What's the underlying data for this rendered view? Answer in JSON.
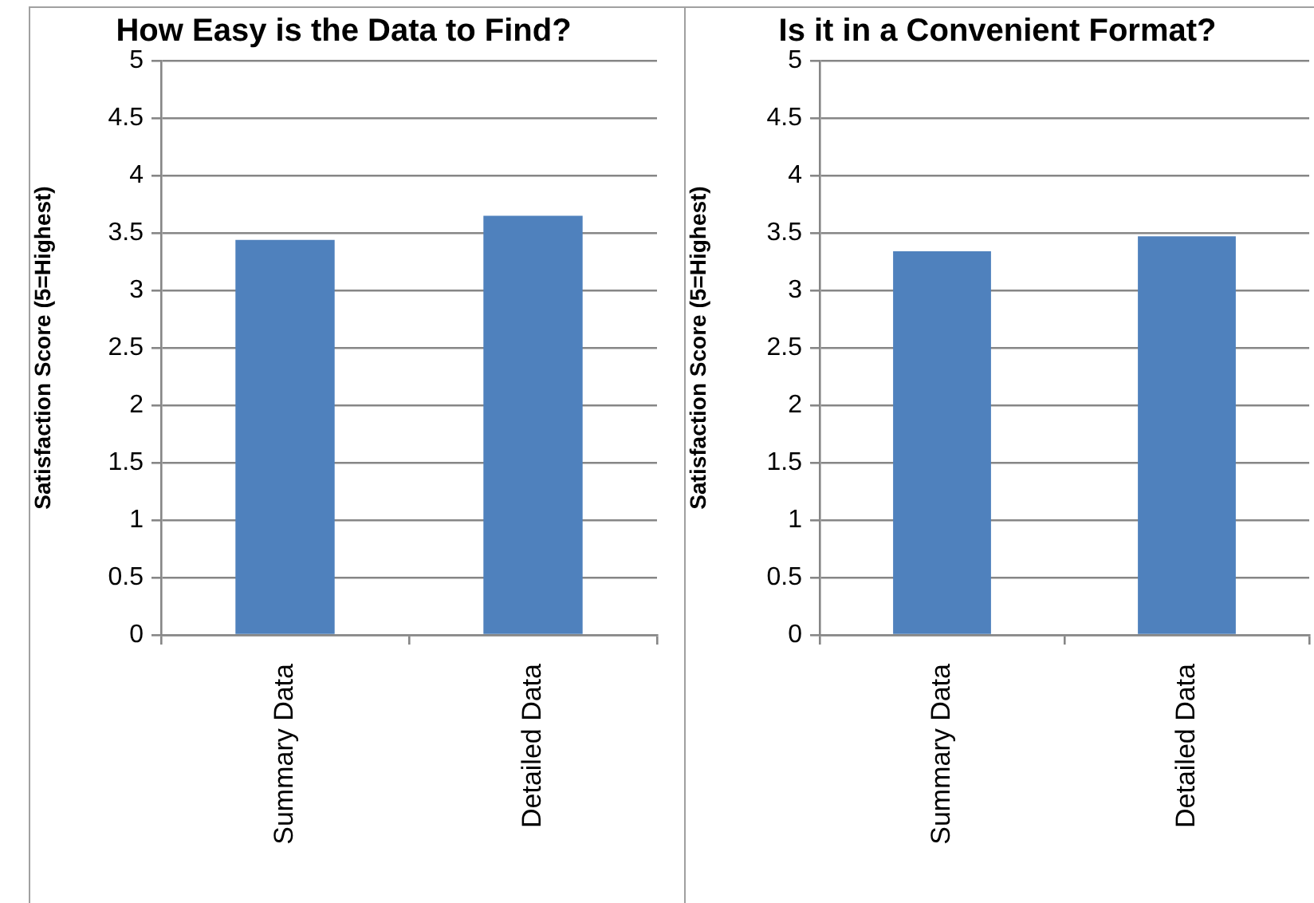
{
  "chart_data": [
    {
      "type": "bar",
      "title": "How Easy is the Data to Find?",
      "ylabel": "Satisfaction Score (5=Highest)",
      "categories": [
        "Summary Data",
        "Detailed Data"
      ],
      "values": [
        3.44,
        3.65
      ],
      "color": "#4f81bd",
      "ylim": [
        0,
        5
      ],
      "yticks": [
        0,
        0.5,
        1,
        1.5,
        2,
        2.5,
        3,
        3.5,
        4,
        4.5,
        5
      ],
      "grid": "y"
    },
    {
      "type": "bar",
      "title": "Is it in a Convenient Format?",
      "ylabel": "Satisfaction Score (5=Highest)",
      "categories": [
        "Summary Data",
        "Detailed Data"
      ],
      "values": [
        3.34,
        3.47
      ],
      "color": "#4f81bd",
      "ylim": [
        0,
        5
      ],
      "yticks": [
        0,
        0.5,
        1,
        1.5,
        2,
        2.5,
        3,
        3.5,
        4,
        4.5,
        5
      ],
      "grid": "y"
    }
  ]
}
